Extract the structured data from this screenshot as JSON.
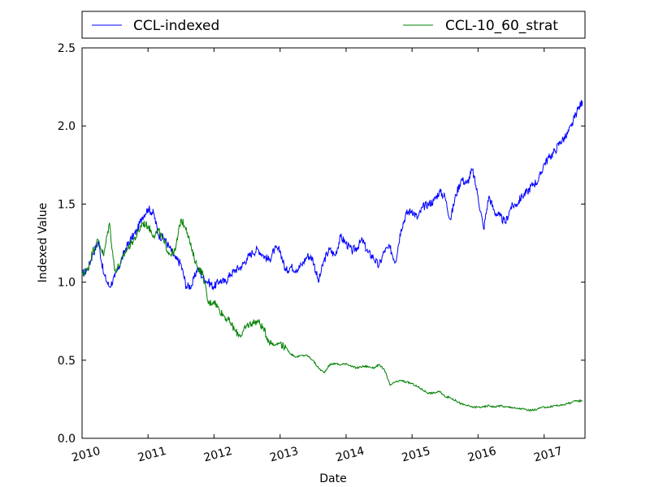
{
  "chart_data": {
    "type": "line",
    "title": "",
    "xlabel": "Date",
    "ylabel": "Indexed Value",
    "x_axis_type": "date",
    "xlim": [
      "2010-01-01",
      "2017-08-15"
    ],
    "ylim": [
      0.0,
      2.5
    ],
    "x_ticks": [
      "2010",
      "2011",
      "2012",
      "2013",
      "2014",
      "2015",
      "2016",
      "2017"
    ],
    "y_ticks": [
      "0.0",
      "0.5",
      "1.0",
      "1.5",
      "2.0",
      "2.5"
    ],
    "grid": false,
    "legend_position": "top",
    "colors": {
      "CCL-indexed": "#0000ff",
      "CCL-10_60_strat": "#008000"
    },
    "series": [
      {
        "name": "CCL-indexed",
        "x": [
          "2010-01-01",
          "2010-02-01",
          "2010-03-01",
          "2010-04-01",
          "2010-05-01",
          "2010-06-01",
          "2010-07-01",
          "2010-08-01",
          "2010-09-01",
          "2010-10-01",
          "2010-11-01",
          "2010-12-01",
          "2011-01-01",
          "2011-02-01",
          "2011-03-01",
          "2011-04-01",
          "2011-05-01",
          "2011-06-01",
          "2011-07-01",
          "2011-08-01",
          "2011-09-01",
          "2011-10-01",
          "2011-11-01",
          "2011-12-01",
          "2012-01-01",
          "2012-02-01",
          "2012-03-01",
          "2012-04-01",
          "2012-05-01",
          "2012-06-01",
          "2012-07-01",
          "2012-08-01",
          "2012-09-01",
          "2012-10-01",
          "2012-11-01",
          "2012-12-01",
          "2013-01-01",
          "2013-02-01",
          "2013-03-01",
          "2013-04-01",
          "2013-05-01",
          "2013-06-01",
          "2013-07-01",
          "2013-08-01",
          "2013-09-01",
          "2013-10-01",
          "2013-11-01",
          "2013-12-01",
          "2014-01-01",
          "2014-02-01",
          "2014-03-01",
          "2014-04-01",
          "2014-05-01",
          "2014-06-01",
          "2014-07-01",
          "2014-08-01",
          "2014-09-01",
          "2014-10-01",
          "2014-11-01",
          "2014-12-01",
          "2015-01-01",
          "2015-02-01",
          "2015-03-01",
          "2015-04-01",
          "2015-05-01",
          "2015-06-01",
          "2015-07-01",
          "2015-08-01",
          "2015-09-01",
          "2015-10-01",
          "2015-11-01",
          "2015-12-01",
          "2016-01-01",
          "2016-02-01",
          "2016-03-01",
          "2016-04-01",
          "2016-05-01",
          "2016-06-01",
          "2016-07-01",
          "2016-08-01",
          "2016-09-01",
          "2016-10-01",
          "2016-11-01",
          "2016-12-01",
          "2017-01-01",
          "2017-02-01",
          "2017-03-01",
          "2017-04-01",
          "2017-05-01",
          "2017-06-01",
          "2017-07-01",
          "2017-08-01"
        ],
        "values": [
          1.05,
          1.08,
          1.18,
          1.26,
          1.05,
          0.97,
          1.03,
          1.12,
          1.22,
          1.28,
          1.33,
          1.42,
          1.47,
          1.44,
          1.3,
          1.28,
          1.22,
          1.15,
          1.12,
          0.97,
          0.98,
          1.09,
          1.03,
          1.0,
          0.97,
          1.01,
          1.0,
          1.05,
          1.08,
          1.1,
          1.15,
          1.19,
          1.21,
          1.17,
          1.14,
          1.21,
          1.2,
          1.07,
          1.1,
          1.08,
          1.11,
          1.17,
          1.15,
          1.0,
          1.14,
          1.21,
          1.17,
          1.29,
          1.25,
          1.2,
          1.22,
          1.27,
          1.19,
          1.16,
          1.1,
          1.2,
          1.22,
          1.13,
          1.34,
          1.44,
          1.46,
          1.41,
          1.48,
          1.5,
          1.52,
          1.58,
          1.55,
          1.4,
          1.56,
          1.66,
          1.63,
          1.72,
          1.55,
          1.34,
          1.55,
          1.45,
          1.42,
          1.38,
          1.48,
          1.5,
          1.55,
          1.58,
          1.63,
          1.65,
          1.76,
          1.8,
          1.84,
          1.9,
          1.93,
          2.0,
          2.09,
          2.16
        ]
      },
      {
        "name": "CCL-10_60_strat",
        "x": [
          "2010-01-01",
          "2010-02-01",
          "2010-03-01",
          "2010-04-01",
          "2010-05-01",
          "2010-06-01",
          "2010-07-01",
          "2010-08-01",
          "2010-09-01",
          "2010-10-01",
          "2010-11-01",
          "2010-12-01",
          "2011-01-01",
          "2011-02-01",
          "2011-03-01",
          "2011-04-01",
          "2011-05-01",
          "2011-06-01",
          "2011-07-01",
          "2011-08-01",
          "2011-09-01",
          "2011-10-01",
          "2011-11-01",
          "2011-12-01",
          "2012-01-01",
          "2012-02-01",
          "2012-03-01",
          "2012-04-01",
          "2012-05-01",
          "2012-06-01",
          "2012-07-01",
          "2012-08-01",
          "2012-09-01",
          "2012-10-01",
          "2012-11-01",
          "2012-12-01",
          "2013-01-01",
          "2013-02-01",
          "2013-03-01",
          "2013-04-01",
          "2013-05-01",
          "2013-06-01",
          "2013-07-01",
          "2013-08-01",
          "2013-09-01",
          "2013-10-01",
          "2013-11-01",
          "2013-12-01",
          "2014-01-01",
          "2014-02-01",
          "2014-03-01",
          "2014-04-01",
          "2014-05-01",
          "2014-06-01",
          "2014-07-01",
          "2014-08-01",
          "2014-09-01",
          "2014-10-01",
          "2014-11-01",
          "2014-12-01",
          "2015-01-01",
          "2015-02-01",
          "2015-03-01",
          "2015-04-01",
          "2015-05-01",
          "2015-06-01",
          "2015-07-01",
          "2015-08-01",
          "2015-09-01",
          "2015-10-01",
          "2015-11-01",
          "2015-12-01",
          "2016-01-01",
          "2016-02-01",
          "2016-03-01",
          "2016-04-01",
          "2016-05-01",
          "2016-06-01",
          "2016-07-01",
          "2016-08-01",
          "2016-09-01",
          "2016-10-01",
          "2016-11-01",
          "2016-12-01",
          "2017-01-01",
          "2017-02-01",
          "2017-03-01",
          "2017-04-01",
          "2017-05-01",
          "2017-06-01",
          "2017-07-01",
          "2017-08-01"
        ],
        "values": [
          1.05,
          1.08,
          1.2,
          1.27,
          1.17,
          1.38,
          1.07,
          1.12,
          1.2,
          1.25,
          1.3,
          1.38,
          1.36,
          1.3,
          1.33,
          1.25,
          1.18,
          1.2,
          1.4,
          1.35,
          1.2,
          1.1,
          1.05,
          0.86,
          0.88,
          0.82,
          0.78,
          0.74,
          0.68,
          0.66,
          0.72,
          0.74,
          0.75,
          0.7,
          0.62,
          0.6,
          0.61,
          0.58,
          0.54,
          0.52,
          0.53,
          0.53,
          0.5,
          0.45,
          0.42,
          0.47,
          0.48,
          0.47,
          0.48,
          0.46,
          0.45,
          0.46,
          0.46,
          0.45,
          0.47,
          0.44,
          0.34,
          0.36,
          0.37,
          0.36,
          0.35,
          0.33,
          0.31,
          0.29,
          0.29,
          0.3,
          0.27,
          0.26,
          0.24,
          0.22,
          0.21,
          0.2,
          0.2,
          0.2,
          0.21,
          0.2,
          0.21,
          0.2,
          0.2,
          0.19,
          0.19,
          0.18,
          0.18,
          0.19,
          0.2,
          0.2,
          0.21,
          0.21,
          0.22,
          0.23,
          0.24,
          0.24
        ]
      }
    ]
  }
}
